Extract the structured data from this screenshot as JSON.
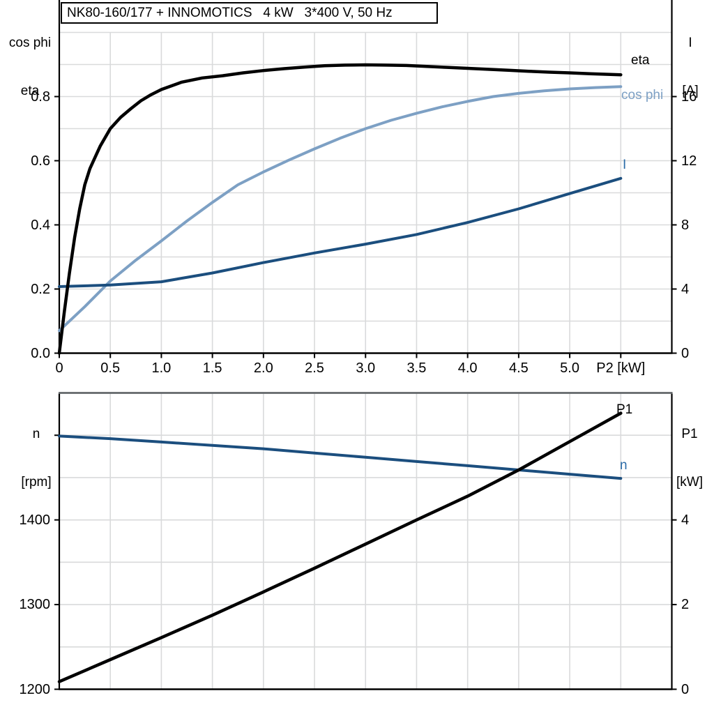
{
  "title": "NK80-160/177 + INNOMOTICS   4 kW   3*400 V, 50 Hz",
  "colors": {
    "black": "#000000",
    "cos_phi_blue": "#7da0c4",
    "current_navy": "#1b4e7e",
    "curve_label_blue": "#2b6ca8",
    "grid": "#d9dadb",
    "frame_gray": "#63676a",
    "axis": "#000000",
    "background": "#ffffff"
  },
  "chart_data": [
    {
      "type": "line",
      "title": "NK80-160/177 + INNOMOTICS   4 kW   3*400 V, 50 Hz",
      "x_axis": {
        "label": "P2 [kW]",
        "min": 0,
        "max": 6,
        "grid_step": 0.5,
        "ticks": [
          0,
          0.5,
          1,
          1.5,
          2,
          2.5,
          3,
          3.5,
          4,
          4.5,
          5,
          5.5
        ],
        "tick_labels": [
          "0",
          "0.5",
          "1.0",
          "1.5",
          "2.0",
          "2.5",
          "3.0",
          "3.5",
          "4.0",
          "4.5",
          "5.0",
          "P2 [kW]"
        ]
      },
      "y_left": {
        "label_lines": [
          "cos phi",
          "eta"
        ],
        "min": 0,
        "max": 1.0,
        "grid_step": 0.1,
        "ticks": [
          0,
          0.2,
          0.4,
          0.6,
          0.8
        ],
        "tick_labels": [
          "0.0",
          "0.2",
          "0.4",
          "0.6",
          "0.8"
        ]
      },
      "y_right": {
        "label_lines": [
          "I",
          "[A]"
        ],
        "min": 0,
        "max": 20,
        "ticks": [
          0,
          4,
          8,
          12,
          16
        ],
        "tick_labels": [
          "0",
          "4",
          "8",
          "12",
          "16"
        ]
      },
      "series": [
        {
          "name": "cos phi",
          "label": "cos phi",
          "axis": "left",
          "color": "#7da0c4",
          "label_color": "#7da0c4",
          "points": [
            [
              0,
              0.07
            ],
            [
              0.25,
              0.145
            ],
            [
              0.5,
              0.225
            ],
            [
              0.75,
              0.29
            ],
            [
              1,
              0.35
            ],
            [
              1.25,
              0.412
            ],
            [
              1.5,
              0.47
            ],
            [
              1.75,
              0.525
            ],
            [
              2,
              0.565
            ],
            [
              2.25,
              0.602
            ],
            [
              2.5,
              0.637
            ],
            [
              2.75,
              0.67
            ],
            [
              3,
              0.7
            ],
            [
              3.25,
              0.726
            ],
            [
              3.5,
              0.748
            ],
            [
              3.75,
              0.768
            ],
            [
              4,
              0.785
            ],
            [
              4.25,
              0.8
            ],
            [
              4.5,
              0.81
            ],
            [
              4.75,
              0.818
            ],
            [
              5,
              0.824
            ],
            [
              5.25,
              0.828
            ],
            [
              5.5,
              0.831
            ]
          ]
        },
        {
          "name": "I",
          "label": "I",
          "axis": "right",
          "color": "#1b4e7e",
          "label_color": "#2b6ca8",
          "points": [
            [
              0,
              4.15
            ],
            [
              0.5,
              4.25
            ],
            [
              1,
              4.45
            ],
            [
              1.5,
              5.0
            ],
            [
              2,
              5.65
            ],
            [
              2.5,
              6.25
            ],
            [
              3,
              6.8
            ],
            [
              3.5,
              7.4
            ],
            [
              4,
              8.15
            ],
            [
              4.5,
              9.0
            ],
            [
              5,
              9.95
            ],
            [
              5.5,
              10.9
            ]
          ]
        },
        {
          "name": "eta",
          "label": "eta",
          "axis": "left",
          "color": "#000000",
          "label_color": "#000000",
          "points": [
            [
              0,
              0
            ],
            [
              0.05,
              0.13
            ],
            [
              0.1,
              0.25
            ],
            [
              0.15,
              0.36
            ],
            [
              0.2,
              0.45
            ],
            [
              0.25,
              0.525
            ],
            [
              0.3,
              0.575
            ],
            [
              0.35,
              0.61
            ],
            [
              0.4,
              0.645
            ],
            [
              0.5,
              0.7
            ],
            [
              0.6,
              0.735
            ],
            [
              0.7,
              0.762
            ],
            [
              0.8,
              0.787
            ],
            [
              0.9,
              0.806
            ],
            [
              1,
              0.822
            ],
            [
              1.2,
              0.845
            ],
            [
              1.4,
              0.858
            ],
            [
              1.6,
              0.865
            ],
            [
              1.8,
              0.874
            ],
            [
              2,
              0.881
            ],
            [
              2.2,
              0.887
            ],
            [
              2.4,
              0.892
            ],
            [
              2.6,
              0.896
            ],
            [
              2.8,
              0.898
            ],
            [
              3,
              0.899
            ],
            [
              3.2,
              0.898
            ],
            [
              3.4,
              0.897
            ],
            [
              3.6,
              0.894
            ],
            [
              3.8,
              0.891
            ],
            [
              4,
              0.888
            ],
            [
              4.2,
              0.885
            ],
            [
              4.4,
              0.882
            ],
            [
              4.6,
              0.879
            ],
            [
              4.8,
              0.876
            ],
            [
              5,
              0.874
            ],
            [
              5.2,
              0.871
            ],
            [
              5.5,
              0.868
            ]
          ]
        }
      ]
    },
    {
      "type": "line",
      "x_axis": {
        "min": 0,
        "max": 6,
        "grid_step": 0.5
      },
      "y_left": {
        "label_lines": [
          "n",
          "[rpm]"
        ],
        "min": 1200,
        "max": 1550,
        "grid_step": 50,
        "ticks": [
          1200,
          1300,
          1400,
          1500
        ],
        "tick_labels": [
          "1200",
          "1300",
          "1400",
          ""
        ]
      },
      "y_right": {
        "label_lines": [
          "P1",
          "[kW]"
        ],
        "min": 0,
        "max": 7,
        "ticks": [
          0,
          2,
          4
        ],
        "tick_labels": [
          "0",
          "2",
          "4"
        ]
      },
      "series": [
        {
          "name": "n",
          "label": "n",
          "axis": "left",
          "color": "#1b4e7e",
          "label_color": "#2b6ca8",
          "points": [
            [
              0,
              1499
            ],
            [
              0.5,
              1496
            ],
            [
              1,
              1492
            ],
            [
              1.5,
              1488
            ],
            [
              2,
              1484
            ],
            [
              2.5,
              1479
            ],
            [
              3,
              1474
            ],
            [
              3.5,
              1469
            ],
            [
              4,
              1464
            ],
            [
              4.5,
              1459
            ],
            [
              5,
              1454
            ],
            [
              5.5,
              1449
            ]
          ]
        },
        {
          "name": "P1",
          "label": "P1",
          "axis": "right",
          "color": "#000000",
          "label_color": "#000000",
          "points": [
            [
              0,
              0.18
            ],
            [
              0.5,
              0.7
            ],
            [
              1,
              1.22
            ],
            [
              1.5,
              1.75
            ],
            [
              2,
              2.3
            ],
            [
              2.5,
              2.86
            ],
            [
              3,
              3.43
            ],
            [
              3.5,
              4.0
            ],
            [
              4,
              4.56
            ],
            [
              4.5,
              5.18
            ],
            [
              5,
              5.85
            ],
            [
              5.5,
              6.52
            ]
          ]
        }
      ]
    }
  ]
}
